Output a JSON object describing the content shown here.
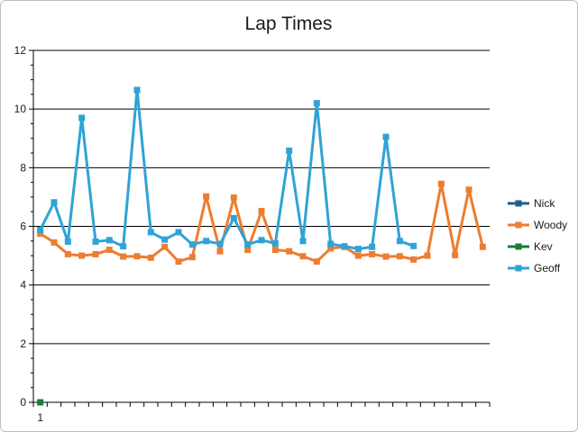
{
  "chart_data": {
    "type": "line",
    "title": "Lap Times",
    "xlabel": "",
    "ylabel": "",
    "ylim": [
      0,
      12
    ],
    "y_ticks": [
      0,
      2,
      4,
      6,
      8,
      10,
      12
    ],
    "x_tick_labels": [
      "1"
    ],
    "x_count": 33,
    "grid": true,
    "legend_position": "right",
    "series": [
      {
        "name": "Nick",
        "color": "#1f5f8b",
        "values": []
      },
      {
        "name": "Woody",
        "color": "#ed7d31",
        "values": [
          5.75,
          5.45,
          5.05,
          5.0,
          5.05,
          5.2,
          4.97,
          4.98,
          4.93,
          5.3,
          4.8,
          4.95,
          7.02,
          5.15,
          6.98,
          5.2,
          6.52,
          5.2,
          5.15,
          4.98,
          4.8,
          5.25,
          5.3,
          5.0,
          5.05,
          4.97,
          4.98,
          4.87,
          5.0,
          7.45,
          5.02,
          7.25,
          5.3
        ]
      },
      {
        "name": "Kev",
        "color": "#1e7b34",
        "values": [
          0
        ]
      },
      {
        "name": "Geoff",
        "color": "#2fa3d6",
        "values": [
          5.88,
          6.82,
          5.48,
          9.7,
          5.48,
          5.53,
          5.32,
          10.65,
          5.8,
          5.55,
          5.8,
          5.38,
          5.5,
          5.4,
          6.28,
          5.38,
          5.53,
          5.42,
          8.58,
          5.5,
          10.2,
          5.4,
          5.32,
          5.23,
          5.3,
          9.05,
          5.5,
          5.33
        ]
      }
    ]
  }
}
